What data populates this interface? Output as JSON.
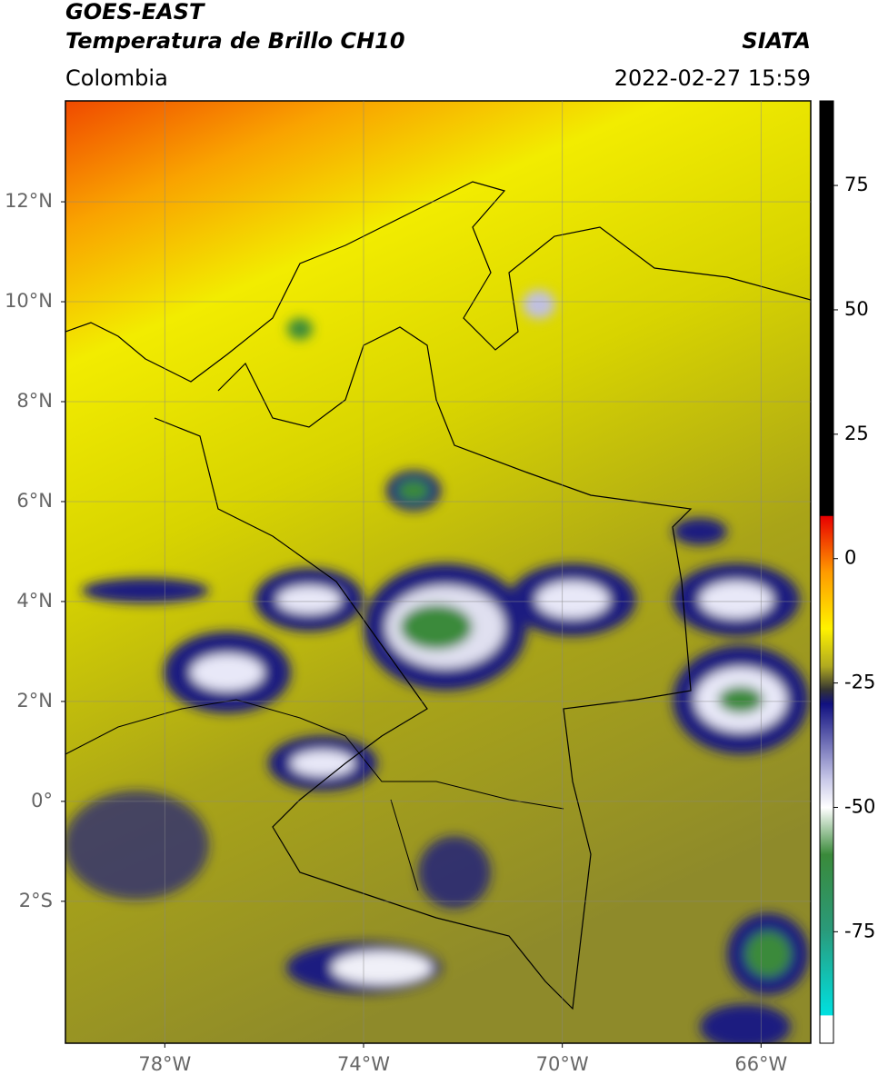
{
  "header": {
    "title": "GOES-EAST",
    "subtitle": "Temperatura de Brillo CH10",
    "source": "SIATA",
    "region": "Colombia",
    "timestamp": "2022-02-27 15:59"
  },
  "map": {
    "xlim": [
      -80,
      -65
    ],
    "ylim": [
      -4.84,
      14.02
    ],
    "xticks": [
      {
        "value": -78,
        "label": "78°W"
      },
      {
        "value": -74,
        "label": "74°W"
      },
      {
        "value": -70,
        "label": "70°W"
      },
      {
        "value": -66,
        "label": "66°W"
      }
    ],
    "yticks": [
      {
        "value": 12,
        "label": "12°N"
      },
      {
        "value": 10,
        "label": "10°N"
      },
      {
        "value": 8,
        "label": "8°N"
      },
      {
        "value": 6,
        "label": "6°N"
      },
      {
        "value": 4,
        "label": "4°N"
      },
      {
        "value": 2,
        "label": "2°N"
      },
      {
        "value": 0,
        "label": "0°"
      },
      {
        "value": -2,
        "label": "2°S"
      }
    ],
    "grid": true
  },
  "colorbar": {
    "lim": [
      -97.4,
      92
    ],
    "ticks": [
      75,
      50,
      25,
      0,
      -25,
      -50,
      -75
    ]
  }
}
